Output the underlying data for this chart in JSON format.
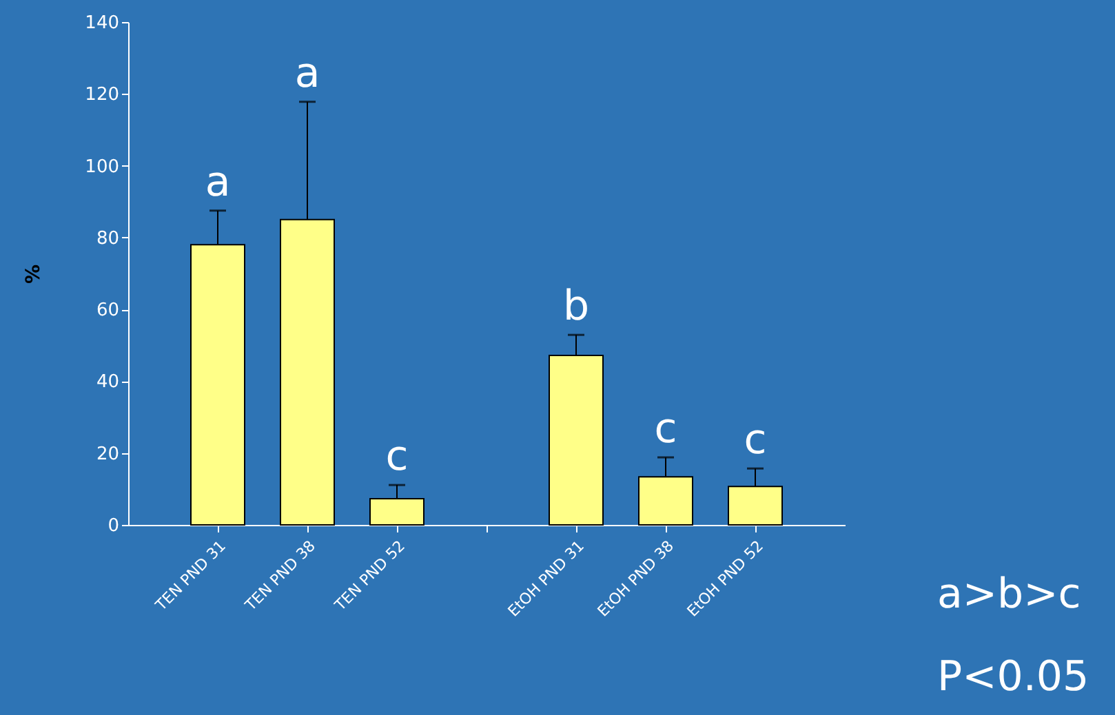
{
  "chart_data": {
    "type": "bar",
    "ylabel": "%",
    "categories": [
      "TEN PND 31",
      "TEN PND 38",
      "TEN PND 52",
      null,
      "EtOH PND 31",
      "EtOH PND 38",
      "EtOH PND 52"
    ],
    "values": [
      78,
      85,
      7.3,
      null,
      47.2,
      13.4,
      10.7
    ],
    "errors": [
      [
        78,
        87.5
      ],
      [
        85,
        117.8
      ],
      [
        7.3,
        11.1
      ],
      null,
      [
        47.2,
        52.9
      ],
      [
        13.4,
        18.8
      ],
      [
        10.7,
        15.7
      ]
    ],
    "color": "#ffff88",
    "ylim": [
      0,
      140
    ],
    "yticks": [
      0,
      20,
      40,
      60,
      80,
      100,
      120,
      140
    ],
    "grid": false,
    "annotations": [
      {
        "text": "a",
        "x": "TEN PND 31",
        "y": 87.5
      },
      {
        "text": "a",
        "x": "TEN PND 38",
        "y": 117.8
      },
      {
        "text": "c",
        "x": "TEN PND 52",
        "y": 11.1
      },
      {
        "text": "b",
        "x": "EtOH PND 31",
        "y": 52.9
      },
      {
        "text": "c",
        "x": "EtOH PND 38",
        "y": 18.8
      },
      {
        "text": "c",
        "x": "EtOH PND 52",
        "y": 15.7
      },
      "a>b>c",
      "P<0.05"
    ]
  }
}
